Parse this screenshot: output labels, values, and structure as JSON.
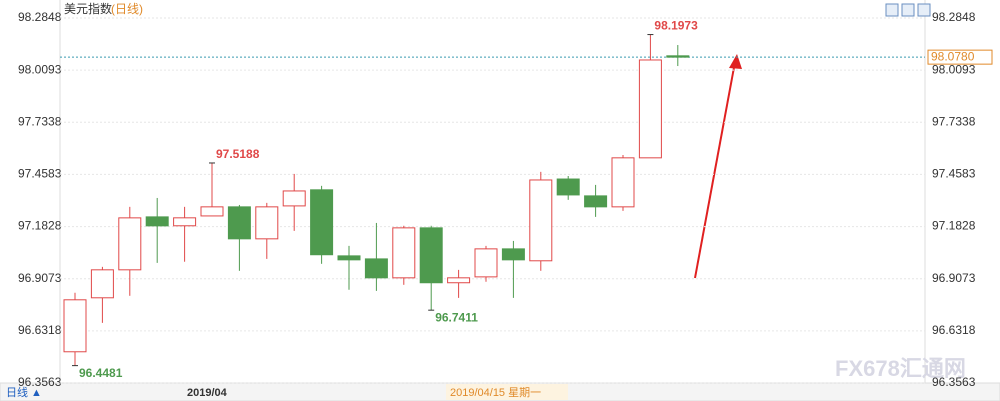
{
  "chart_data": {
    "type": "candlestick",
    "title": "美元指数",
    "subtitle": "(日线)",
    "period_button": "日线 ▲",
    "x_labels": [
      "2019/04",
      "2019/04/15 星期一"
    ],
    "watermark": "FX678汇通网",
    "up_color": "#e04848",
    "down_color": "#4e9a4e",
    "open": [
      96.5213,
      96.8065,
      96.9543,
      97.234,
      97.187,
      97.239,
      97.287,
      97.118,
      97.292,
      97.377,
      97.028,
      97.012,
      96.912,
      97.176,
      96.886,
      96.917,
      97.065,
      97.002,
      97.434,
      97.345,
      97.287,
      97.546,
      98.085
    ],
    "high": [
      96.833,
      96.97,
      97.287,
      97.334,
      97.287,
      97.5188,
      97.297,
      97.308,
      97.461,
      97.398,
      97.081,
      97.202,
      97.187,
      97.187,
      96.954,
      97.081,
      97.107,
      97.472,
      97.45,
      97.403,
      97.561,
      98.1973,
      98.142
    ],
    "low": [
      96.4481,
      96.674,
      96.817,
      96.991,
      96.997,
      97.24,
      96.949,
      97.012,
      97.16,
      96.986,
      96.849,
      96.843,
      96.875,
      96.7411,
      96.806,
      96.891,
      96.806,
      96.949,
      97.324,
      97.234,
      97.266,
      97.546,
      98.031
    ],
    "close": [
      96.7959,
      96.9543,
      97.2288,
      97.1866,
      97.229,
      97.287,
      97.118,
      97.287,
      97.371,
      97.034,
      97.007,
      96.912,
      97.176,
      96.886,
      96.912,
      97.065,
      97.007,
      97.429,
      97.35,
      97.287,
      97.546,
      98.063,
      98.078
    ],
    "high_labels": [
      null,
      null,
      null,
      null,
      null,
      "97.5188",
      null,
      null,
      null,
      null,
      null,
      null,
      null,
      null,
      null,
      null,
      null,
      null,
      null,
      null,
      null,
      "98.1973",
      null
    ],
    "low_labels": [
      "96.4481",
      null,
      null,
      null,
      null,
      null,
      null,
      null,
      null,
      null,
      null,
      null,
      null,
      "96.7411",
      null,
      null,
      null,
      null,
      null,
      null,
      null,
      null,
      null
    ],
    "last_price": {
      "value": 98.078,
      "label": "98.0780"
    },
    "ylim": [
      96.3563,
      98.2848
    ],
    "yticks": [
      98.2848,
      98.0093,
      97.7338,
      97.4583,
      97.1828,
      96.9073,
      96.6318,
      96.3563
    ],
    "grid": true
  }
}
